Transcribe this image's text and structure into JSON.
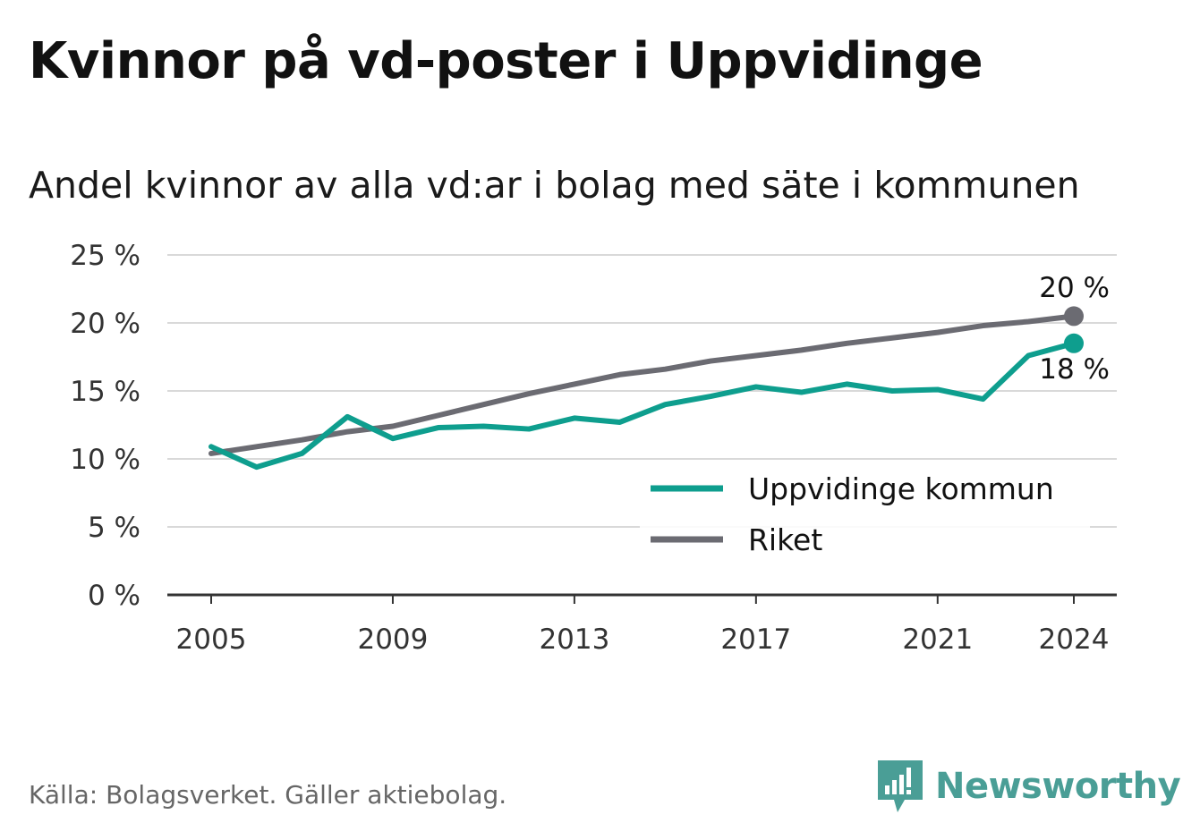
{
  "title": "Kvinnor på vd-poster i Uppvidinge",
  "subtitle": "Andel kvinnor av alla vd:ar i bolag med säte i kommunen",
  "source": "Källa: Bolagsverket. Gäller aktiebolag.",
  "brand": {
    "name": "Newsworthy",
    "icon": "newsworthy-logo-icon",
    "color": "#4a9e96"
  },
  "colors": {
    "kommun": "#0e9e8e",
    "riket": "#6b6b72",
    "grid": "#d9d9d9",
    "axis": "#333333"
  },
  "chart_data": {
    "type": "line",
    "x": [
      2005,
      2006,
      2007,
      2008,
      2009,
      2010,
      2011,
      2012,
      2013,
      2014,
      2015,
      2016,
      2017,
      2018,
      2019,
      2020,
      2021,
      2022,
      2023,
      2024
    ],
    "series": [
      {
        "name": "Uppvidinge kommun",
        "color": "#0e9e8e",
        "values": [
          10.9,
          9.4,
          10.4,
          13.1,
          11.5,
          12.3,
          12.4,
          12.2,
          13.0,
          12.7,
          14.0,
          14.6,
          15.3,
          14.9,
          15.5,
          15.0,
          15.1,
          14.4,
          17.6,
          18.5
        ]
      },
      {
        "name": "Riket",
        "color": "#6b6b72",
        "values": [
          10.4,
          10.9,
          11.4,
          12.0,
          12.4,
          13.2,
          14.0,
          14.8,
          15.5,
          16.2,
          16.6,
          17.2,
          17.6,
          18.0,
          18.5,
          18.9,
          19.3,
          19.8,
          20.1,
          20.5
        ]
      }
    ],
    "end_labels": [
      {
        "series": "Riket",
        "text": "20 %"
      },
      {
        "series": "Uppvidinge kommun",
        "text": "18 %"
      }
    ],
    "xticks": [
      2005,
      2009,
      2013,
      2017,
      2021,
      2024
    ],
    "yticks": [
      0,
      5,
      10,
      15,
      20,
      25
    ],
    "ytick_labels": [
      "0 %",
      "5 %",
      "10 %",
      "15 %",
      "20 %",
      "25 %"
    ],
    "ylim": [
      0,
      25
    ],
    "xlim": [
      2005,
      2024
    ],
    "grid": true,
    "legend_position": "bottom-right",
    "title": "Kvinnor på vd-poster i Uppvidinge",
    "subtitle": "Andel kvinnor av alla vd:ar i bolag med säte i kommunen",
    "xlabel": "",
    "ylabel": ""
  }
}
